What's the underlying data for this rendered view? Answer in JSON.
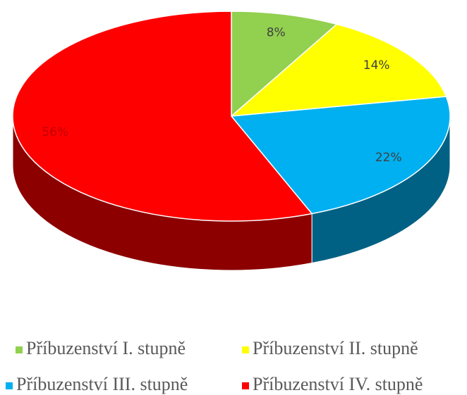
{
  "chart_data": {
    "type": "pie",
    "categories": [
      "Příbuzenství I. stupně",
      "Příbuzenství II. stupně",
      "Příbuzenství III. stupně",
      "Příbuzenství IV. stupně"
    ],
    "values": [
      8,
      14,
      22,
      56
    ],
    "value_labels": [
      "8%",
      "14%",
      "22%",
      "56%"
    ],
    "colors": [
      "#92d050",
      "#ffff00",
      "#00b0f0",
      "#ff0000"
    ],
    "legend": "bottom"
  }
}
